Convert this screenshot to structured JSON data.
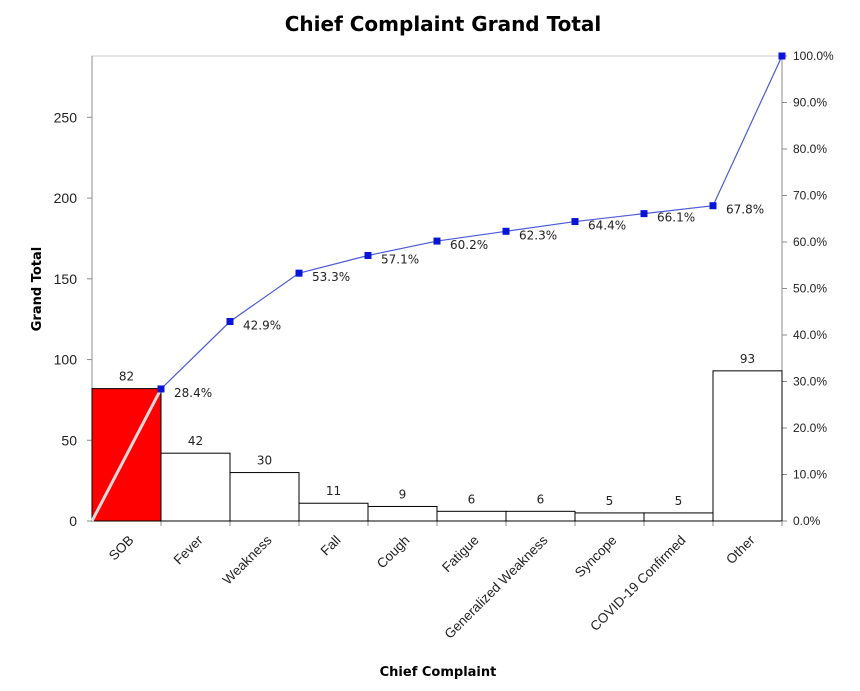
{
  "chart_data": {
    "type": "bar",
    "title": "Chief Complaint Grand Total",
    "xlabel": "Chief Complaint",
    "ylabel": "Grand Total",
    "ylim": [
      0,
      288
    ],
    "yticks": [
      0,
      50,
      100,
      150,
      200,
      250
    ],
    "y2lim": [
      0,
      100
    ],
    "y2ticks": [
      "0.0%",
      "10.0%",
      "20.0%",
      "30.0%",
      "40.0%",
      "50.0%",
      "60.0%",
      "70.0%",
      "80.0%",
      "90.0%",
      "100.0%"
    ],
    "categories": [
      "SOB",
      "Fever",
      "Weakness",
      "Fall",
      "Cough",
      "Fatigue",
      "Generalized Weakness",
      "Syncope",
      "COVID-19 Confirmed",
      "Other"
    ],
    "values": [
      82,
      42,
      30,
      11,
      9,
      6,
      6,
      5,
      5,
      93
    ],
    "cumulative_percent": [
      28.4,
      42.9,
      53.3,
      57.1,
      60.2,
      62.3,
      64.4,
      66.1,
      67.8,
      100.0
    ],
    "cumulative_labels": [
      "28.4%",
      "42.9%",
      "53.3%",
      "57.1%",
      "60.2%",
      "62.3%",
      "64.4%",
      "66.1%",
      "67.8%",
      ""
    ],
    "grid": false,
    "colors": {
      "highlight_bar": "#ff0000",
      "bar_fill": "#ffffff",
      "line": "#4b5bd6",
      "marker": "#0a14d6"
    }
  }
}
